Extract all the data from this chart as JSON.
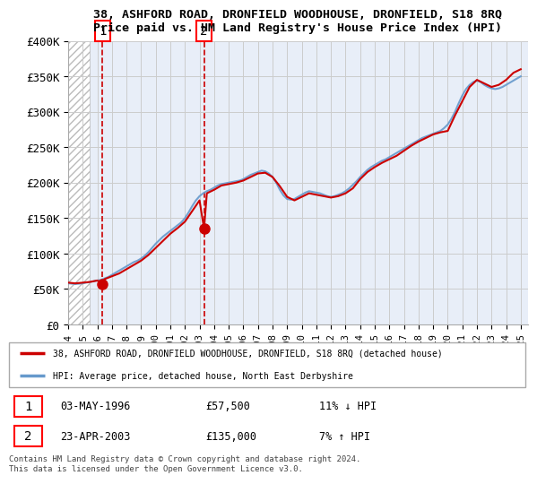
{
  "title1": "38, ASHFORD ROAD, DRONFIELD WOODHOUSE, DRONFIELD, S18 8RQ",
  "title2": "Price paid vs. HM Land Registry's House Price Index (HPI)",
  "ylabel_ticks": [
    "£0",
    "£50K",
    "£100K",
    "£150K",
    "£200K",
    "£250K",
    "£300K",
    "£350K",
    "£400K"
  ],
  "ytick_values": [
    0,
    50000,
    100000,
    150000,
    200000,
    250000,
    300000,
    350000,
    400000
  ],
  "ylim": [
    0,
    400000
  ],
  "xlim_start": 1994.0,
  "xlim_end": 2025.5,
  "xtick_years": [
    1994,
    1995,
    1996,
    1997,
    1998,
    1999,
    2000,
    2001,
    2002,
    2003,
    2004,
    2005,
    2006,
    2007,
    2008,
    2009,
    2010,
    2011,
    2012,
    2013,
    2014,
    2015,
    2016,
    2017,
    2018,
    2019,
    2020,
    2021,
    2022,
    2023,
    2024,
    2025
  ],
  "hatch_region_start": 1994.0,
  "hatch_region_end": 1995.5,
  "sale1_x": 1996.35,
  "sale1_y": 57500,
  "sale1_label": "1",
  "sale1_date": "03-MAY-1996",
  "sale1_price": "£57,500",
  "sale1_hpi": "11% ↓ HPI",
  "sale2_x": 2003.31,
  "sale2_y": 135000,
  "sale2_label": "2",
  "sale2_date": "23-APR-2003",
  "sale2_price": "£135,000",
  "sale2_hpi": "7% ↑ HPI",
  "vline1_x": 1996.35,
  "vline2_x": 2003.31,
  "legend_line1": "38, ASHFORD ROAD, DRONFIELD WOODHOUSE, DRONFIELD, S18 8RQ (detached house)",
  "legend_line2": "HPI: Average price, detached house, North East Derbyshire",
  "red_line_color": "#cc0000",
  "blue_line_color": "#6699cc",
  "grid_color": "#cccccc",
  "bg_color": "#e8eef8",
  "copyright_text": "Contains HM Land Registry data © Crown copyright and database right 2024.\nThis data is licensed under the Open Government Licence v3.0."
}
